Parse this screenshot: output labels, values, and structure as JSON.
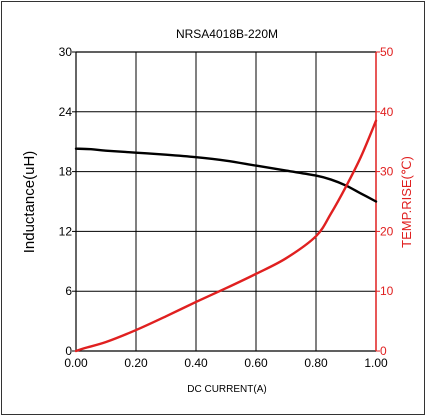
{
  "chart_data": {
    "type": "line",
    "title": "NRSA4018B-220M",
    "xlabel": "DC CURRENT(A)",
    "ylabel": "Inductance(uH)",
    "y2label": "TEMP.RISE(℃)",
    "xlim": [
      0,
      1.0
    ],
    "ylim": [
      0,
      30
    ],
    "y2lim": [
      0,
      50
    ],
    "xticks": [
      "0.00",
      "0.20",
      "0.40",
      "0.60",
      "0.80",
      "1.00"
    ],
    "yticks": [
      "0",
      "6",
      "12",
      "18",
      "24",
      "30"
    ],
    "y2ticks": [
      "0",
      "10",
      "20",
      "30",
      "40",
      "50"
    ],
    "grid": true,
    "legend": "none",
    "colors": {
      "inductance": "#000000",
      "temp_rise": "#e02020",
      "axis": "#000000",
      "right_axis": "#e02020",
      "grid": "#000000"
    },
    "series": [
      {
        "key": "inductance",
        "axis": "left",
        "x": [
          0.0,
          0.05,
          0.1,
          0.2,
          0.3,
          0.4,
          0.5,
          0.6,
          0.7,
          0.8,
          0.85,
          0.9,
          0.95,
          1.0
        ],
        "values": [
          20.3,
          20.25,
          20.1,
          19.9,
          19.7,
          19.45,
          19.1,
          18.6,
          18.1,
          17.6,
          17.2,
          16.6,
          15.8,
          15.0
        ]
      },
      {
        "key": "temp_rise",
        "axis": "right",
        "x": [
          0.0,
          0.03,
          0.1,
          0.2,
          0.3,
          0.4,
          0.5,
          0.6,
          0.7,
          0.8,
          0.85,
          0.9,
          0.95,
          1.0
        ],
        "values": [
          0.0,
          0.5,
          1.5,
          3.5,
          5.8,
          8.2,
          10.5,
          12.9,
          15.5,
          19.2,
          23.0,
          27.5,
          32.5,
          38.5
        ]
      }
    ]
  }
}
